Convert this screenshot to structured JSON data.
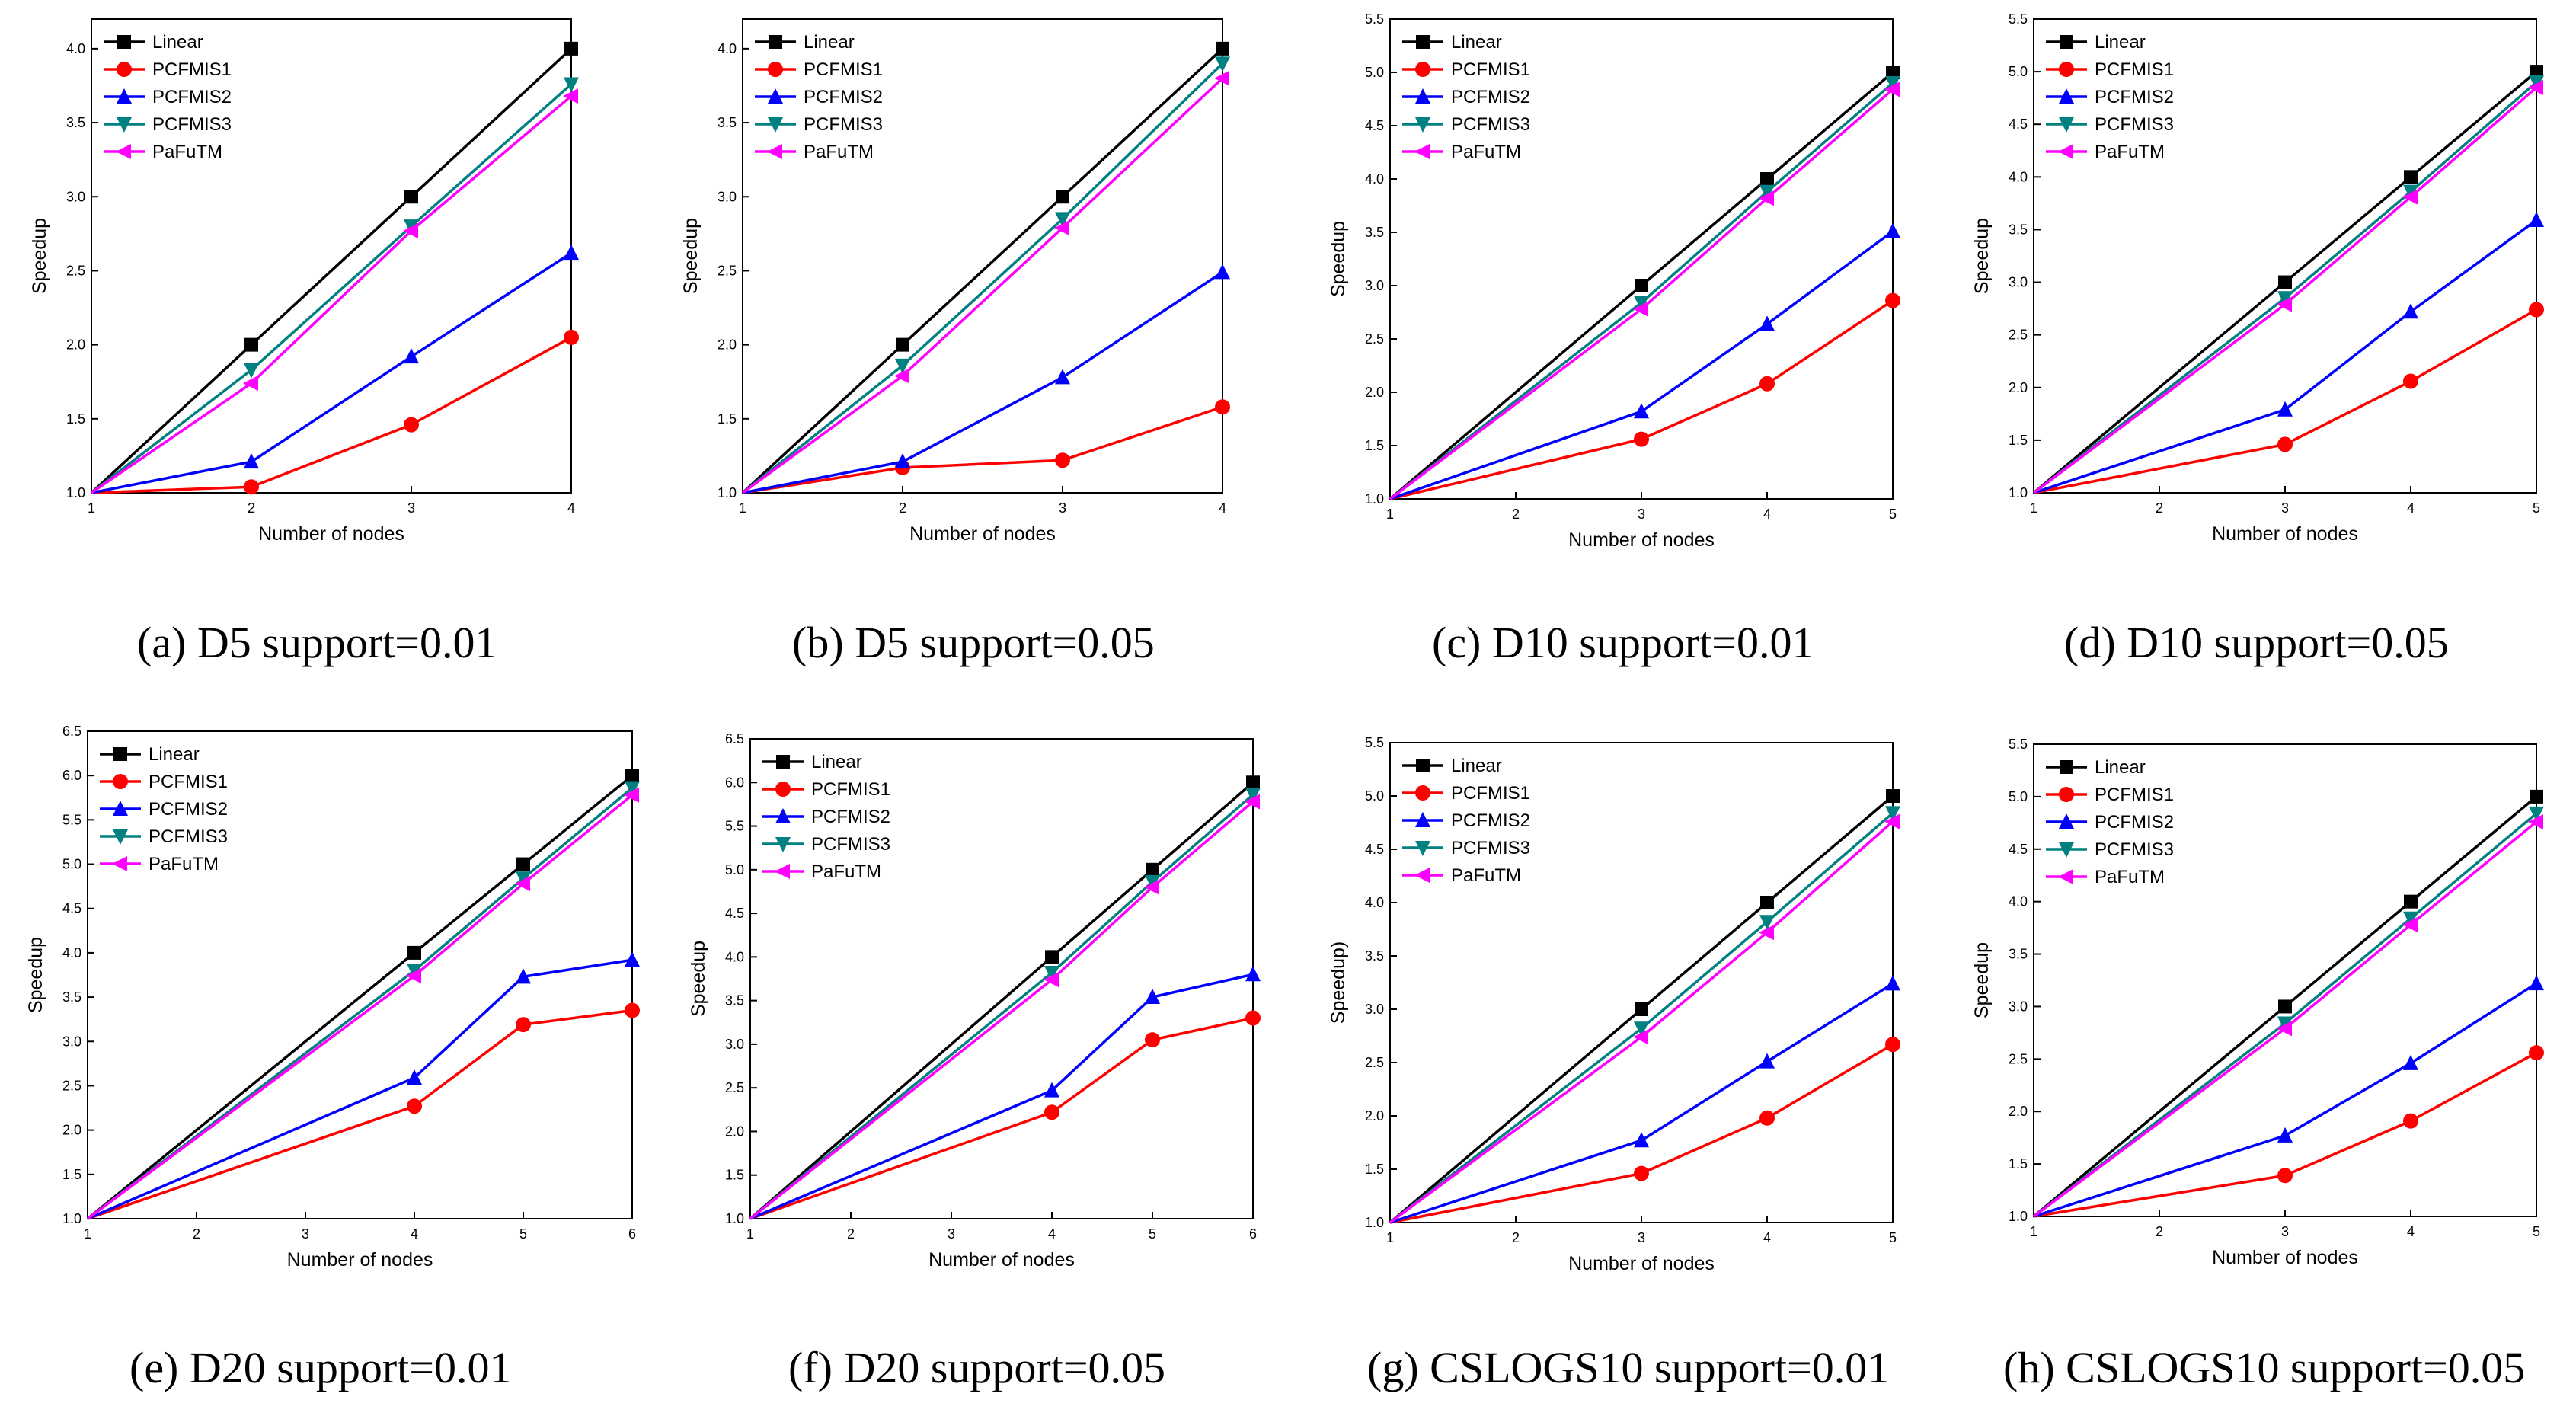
{
  "figure": {
    "background": "#ffffff"
  },
  "series_style": [
    {
      "name": "Linear",
      "color": "#000000",
      "marker": "square"
    },
    {
      "name": "PCFMIS1",
      "color": "#ff0000",
      "marker": "circle"
    },
    {
      "name": "PCFMIS2",
      "color": "#0000ff",
      "marker": "triangle-up"
    },
    {
      "name": "PCFMIS3",
      "color": "#008080",
      "marker": "triangle-down"
    },
    {
      "name": "PaFuTM",
      "color": "#ff00ff",
      "marker": "triangle-left"
    }
  ],
  "chart_data": [
    {
      "id": "a",
      "type": "line",
      "caption": "(a) D5 support=0.01",
      "xlabel": "Number of nodes",
      "ylabel": "Speedup",
      "xlim": [
        1,
        4
      ],
      "ylim": [
        1.0,
        4.2
      ],
      "xticks": [
        1,
        2,
        3,
        4
      ],
      "yticks": [
        1.0,
        1.5,
        2.0,
        2.5,
        3.0,
        3.5,
        4.0
      ],
      "x": [
        1,
        2,
        3,
        4
      ],
      "series": [
        {
          "name": "Linear",
          "values": [
            1.0,
            2.0,
            3.0,
            4.0
          ]
        },
        {
          "name": "PCFMIS1",
          "values": [
            1.0,
            1.04,
            1.46,
            2.05
          ]
        },
        {
          "name": "PCFMIS2",
          "values": [
            1.0,
            1.21,
            1.92,
            2.62
          ]
        },
        {
          "name": "PCFMIS3",
          "values": [
            1.0,
            1.83,
            2.8,
            3.76
          ]
        },
        {
          "name": "PaFuTM",
          "values": [
            1.0,
            1.74,
            2.77,
            3.68
          ]
        }
      ]
    },
    {
      "id": "b",
      "type": "line",
      "caption": "(b) D5 support=0.05",
      "xlabel": "Number of nodes",
      "ylabel": "Speedup",
      "xlim": [
        1,
        4
      ],
      "ylim": [
        1.0,
        4.2
      ],
      "xticks": [
        1,
        2,
        3,
        4
      ],
      "yticks": [
        1.0,
        1.5,
        2.0,
        2.5,
        3.0,
        3.5,
        4.0
      ],
      "x": [
        1,
        2,
        3,
        4
      ],
      "series": [
        {
          "name": "Linear",
          "values": [
            1.0,
            2.0,
            3.0,
            4.0
          ]
        },
        {
          "name": "PCFMIS1",
          "values": [
            1.0,
            1.17,
            1.22,
            1.58
          ]
        },
        {
          "name": "PCFMIS2",
          "values": [
            1.0,
            1.21,
            1.78,
            2.49
          ]
        },
        {
          "name": "PCFMIS3",
          "values": [
            1.0,
            1.86,
            2.85,
            3.9
          ]
        },
        {
          "name": "PaFuTM",
          "values": [
            1.0,
            1.79,
            2.79,
            3.8
          ]
        }
      ]
    },
    {
      "id": "c",
      "type": "line",
      "caption": "(c) D10 support=0.01",
      "xlabel": "Number of nodes",
      "ylabel": "Speedup",
      "xlim": [
        1,
        5
      ],
      "ylim": [
        1.0,
        5.5
      ],
      "xticks": [
        1,
        2,
        3,
        4,
        5
      ],
      "yticks": [
        1.0,
        1.5,
        2.0,
        2.5,
        3.0,
        3.5,
        4.0,
        4.5,
        5.0,
        5.5
      ],
      "x": [
        1,
        3,
        4,
        5
      ],
      "series": [
        {
          "name": "Linear",
          "values": [
            1.0,
            3.0,
            4.0,
            5.0
          ]
        },
        {
          "name": "PCFMIS1",
          "values": [
            1.0,
            1.56,
            2.08,
            2.86
          ]
        },
        {
          "name": "PCFMIS2",
          "values": [
            1.0,
            1.82,
            2.64,
            3.51
          ]
        },
        {
          "name": "PCFMIS3",
          "values": [
            1.0,
            2.84,
            3.88,
            4.9
          ]
        },
        {
          "name": "PaFuTM",
          "values": [
            1.0,
            2.78,
            3.82,
            4.84
          ]
        }
      ]
    },
    {
      "id": "d",
      "type": "line",
      "caption": "(d) D10 support=0.05",
      "xlabel": "Number of nodes",
      "ylabel": "Speedup",
      "xlim": [
        1,
        5
      ],
      "ylim": [
        1.0,
        5.5
      ],
      "xticks": [
        1,
        2,
        3,
        4,
        5
      ],
      "yticks": [
        1.0,
        1.5,
        2.0,
        2.5,
        3.0,
        3.5,
        4.0,
        4.5,
        5.0,
        5.5
      ],
      "x": [
        1,
        3,
        4,
        5
      ],
      "series": [
        {
          "name": "Linear",
          "values": [
            1.0,
            3.0,
            4.0,
            5.0
          ]
        },
        {
          "name": "PCFMIS1",
          "values": [
            1.0,
            1.46,
            2.06,
            2.74
          ]
        },
        {
          "name": "PCFMIS2",
          "values": [
            1.0,
            1.79,
            2.72,
            3.59
          ]
        },
        {
          "name": "PCFMIS3",
          "values": [
            1.0,
            2.85,
            3.86,
            4.9
          ]
        },
        {
          "name": "PaFuTM",
          "values": [
            1.0,
            2.79,
            3.81,
            4.85
          ]
        }
      ]
    },
    {
      "id": "e",
      "type": "line",
      "caption": "(e) D20 support=0.01",
      "xlabel": "Number of nodes",
      "ylabel": "Speedup",
      "xlim": [
        1,
        6
      ],
      "ylim": [
        1.0,
        6.5
      ],
      "xticks": [
        1,
        2,
        3,
        4,
        5,
        6
      ],
      "yticks": [
        1.0,
        1.5,
        2.0,
        2.5,
        3.0,
        3.5,
        4.0,
        4.5,
        5.0,
        5.5,
        6.0,
        6.5
      ],
      "x": [
        1,
        4,
        5,
        6
      ],
      "series": [
        {
          "name": "Linear",
          "values": [
            1.0,
            4.0,
            5.0,
            6.0
          ]
        },
        {
          "name": "PCFMIS1",
          "values": [
            1.0,
            2.27,
            3.19,
            3.35
          ]
        },
        {
          "name": "PCFMIS2",
          "values": [
            1.0,
            2.59,
            3.73,
            3.92
          ]
        },
        {
          "name": "PCFMIS3",
          "values": [
            1.0,
            3.8,
            4.84,
            5.86
          ]
        },
        {
          "name": "PaFuTM",
          "values": [
            1.0,
            3.74,
            4.78,
            5.78
          ]
        }
      ]
    },
    {
      "id": "f",
      "type": "line",
      "caption": "(f) D20 support=0.05",
      "xlabel": "Number of nodes",
      "ylabel": "Speedup",
      "xlim": [
        1,
        6
      ],
      "ylim": [
        1.0,
        6.5
      ],
      "xticks": [
        1,
        2,
        3,
        4,
        5,
        6
      ],
      "yticks": [
        1.0,
        1.5,
        2.0,
        2.5,
        3.0,
        3.5,
        4.0,
        4.5,
        5.0,
        5.5,
        6.0,
        6.5
      ],
      "x": [
        1,
        4,
        5,
        6
      ],
      "series": [
        {
          "name": "Linear",
          "values": [
            1.0,
            4.0,
            5.0,
            6.0
          ]
        },
        {
          "name": "PCFMIS1",
          "values": [
            1.0,
            2.22,
            3.05,
            3.3
          ]
        },
        {
          "name": "PCFMIS2",
          "values": [
            1.0,
            2.47,
            3.54,
            3.8
          ]
        },
        {
          "name": "PCFMIS3",
          "values": [
            1.0,
            3.82,
            4.86,
            5.86
          ]
        },
        {
          "name": "PaFuTM",
          "values": [
            1.0,
            3.74,
            4.8,
            5.78
          ]
        }
      ]
    },
    {
      "id": "g",
      "type": "line",
      "caption": "(g) CSLOGS10 support=0.01",
      "xlabel": "Number of nodes",
      "ylabel": "Speedup)",
      "xlim": [
        1,
        5
      ],
      "ylim": [
        1.0,
        5.5
      ],
      "xticks": [
        1,
        2,
        3,
        4,
        5
      ],
      "yticks": [
        1.0,
        1.5,
        2.0,
        2.5,
        3.0,
        3.5,
        4.0,
        4.5,
        5.0,
        5.5
      ],
      "x": [
        1,
        3,
        4,
        5
      ],
      "series": [
        {
          "name": "Linear",
          "values": [
            1.0,
            3.0,
            4.0,
            5.0
          ]
        },
        {
          "name": "PCFMIS1",
          "values": [
            1.0,
            1.46,
            1.98,
            2.67
          ]
        },
        {
          "name": "PCFMIS2",
          "values": [
            1.0,
            1.77,
            2.51,
            3.24
          ]
        },
        {
          "name": "PCFMIS3",
          "values": [
            1.0,
            2.82,
            3.82,
            4.84
          ]
        },
        {
          "name": "PaFuTM",
          "values": [
            1.0,
            2.74,
            3.72,
            4.76
          ]
        }
      ]
    },
    {
      "id": "h",
      "type": "line",
      "caption": "(h) CSLOGS10 support=0.05",
      "xlabel": "Number of nodes",
      "ylabel": "Speedup",
      "xlim": [
        1,
        5
      ],
      "ylim": [
        1.0,
        5.5
      ],
      "xticks": [
        1,
        2,
        3,
        4,
        5
      ],
      "yticks": [
        1.0,
        1.5,
        2.0,
        2.5,
        3.0,
        3.5,
        4.0,
        4.5,
        5.0,
        5.5
      ],
      "x": [
        1,
        3,
        4,
        5
      ],
      "series": [
        {
          "name": "Linear",
          "values": [
            1.0,
            3.0,
            4.0,
            5.0
          ]
        },
        {
          "name": "PCFMIS1",
          "values": [
            1.0,
            1.39,
            1.91,
            2.56
          ]
        },
        {
          "name": "PCFMIS2",
          "values": [
            1.0,
            1.77,
            2.46,
            3.22
          ]
        },
        {
          "name": "PCFMIS3",
          "values": [
            1.0,
            2.84,
            3.84,
            4.84
          ]
        },
        {
          "name": "PaFuTM",
          "values": [
            1.0,
            2.79,
            3.78,
            4.76
          ]
        }
      ]
    }
  ]
}
